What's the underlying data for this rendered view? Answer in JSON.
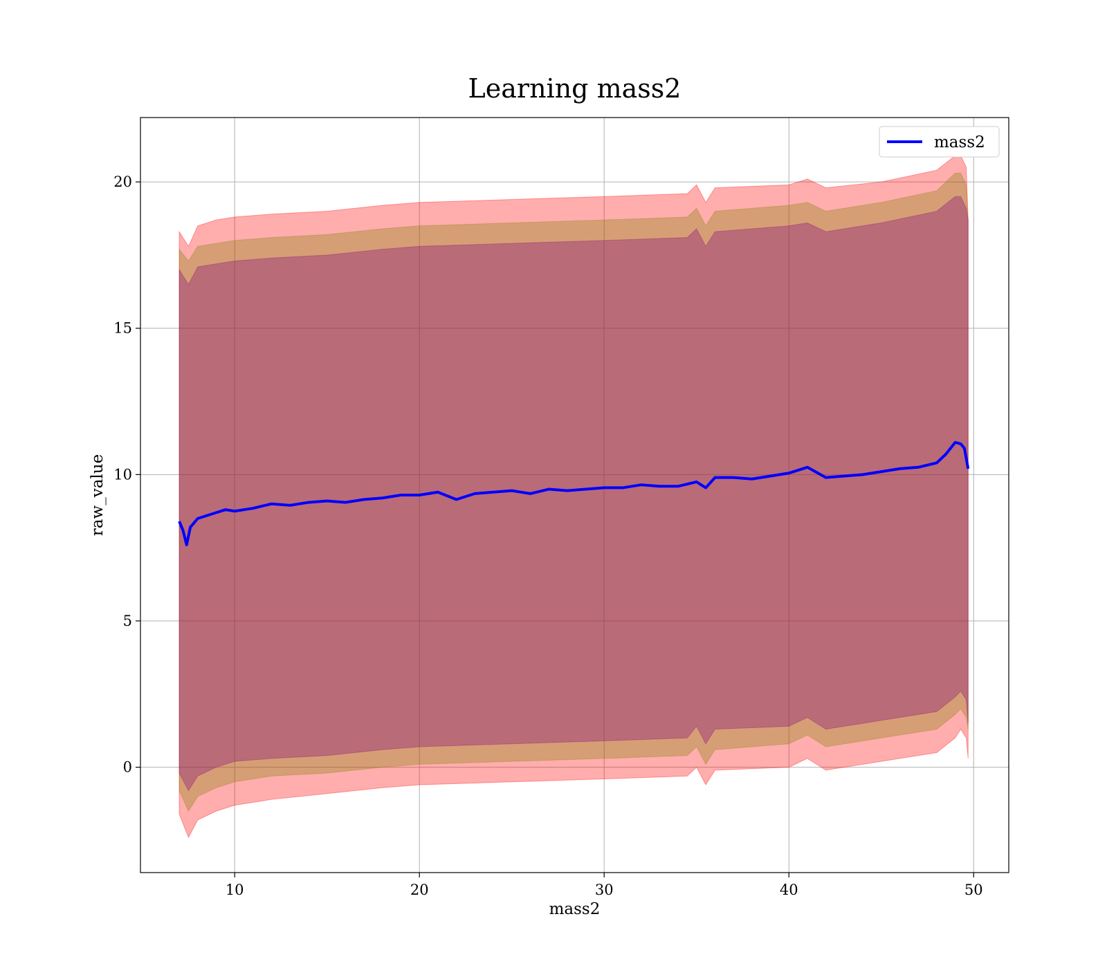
{
  "chart_data": {
    "type": "line",
    "title": "Learning mass2",
    "xlabel": "mass2",
    "ylabel": "raw_value",
    "xlim": [
      4.9,
      51.9
    ],
    "ylim": [
      -3.6,
      22.2
    ],
    "xticks": [
      10,
      20,
      30,
      40,
      50
    ],
    "yticks": [
      0,
      5,
      10,
      15,
      20
    ],
    "xtick_labels": [
      "10",
      "20",
      "30",
      "40",
      "50"
    ],
    "ytick_labels": [
      "0",
      "5",
      "10",
      "15",
      "20"
    ],
    "grid": true,
    "legend": {
      "position": "top-right",
      "entries": [
        "mass2"
      ]
    },
    "colors": {
      "line": "#0000ff",
      "band_outer": "#ff0000",
      "band_mid": "#808000",
      "band_inner": "#800080",
      "grid": "#b0b0b0"
    },
    "series": [
      {
        "name": "mass2",
        "x": [
          7.0,
          7.2,
          7.4,
          7.6,
          8.0,
          8.5,
          9.0,
          9.5,
          10.0,
          11.0,
          12.0,
          13.0,
          14.0,
          15.0,
          16.0,
          17.0,
          18.0,
          19.0,
          20.0,
          21.0,
          22.0,
          23.0,
          24.0,
          25.0,
          26.0,
          27.0,
          28.0,
          29.0,
          30.0,
          31.0,
          32.0,
          33.0,
          34.0,
          35.0,
          35.5,
          36.0,
          37.0,
          38.0,
          39.0,
          40.0,
          41.0,
          42.0,
          43.0,
          44.0,
          45.0,
          46.0,
          47.0,
          48.0,
          48.5,
          49.0,
          49.3,
          49.5,
          49.7
        ],
        "y": [
          8.4,
          8.1,
          7.6,
          8.2,
          8.5,
          8.6,
          8.7,
          8.8,
          8.75,
          8.85,
          9.0,
          8.95,
          9.05,
          9.1,
          9.05,
          9.15,
          9.2,
          9.3,
          9.3,
          9.4,
          9.15,
          9.35,
          9.4,
          9.45,
          9.35,
          9.5,
          9.45,
          9.5,
          9.55,
          9.55,
          9.65,
          9.6,
          9.6,
          9.75,
          9.55,
          9.9,
          9.9,
          9.85,
          9.95,
          10.05,
          10.25,
          9.9,
          9.95,
          10.0,
          10.1,
          10.2,
          10.25,
          10.4,
          10.7,
          11.1,
          11.05,
          10.9,
          10.2
        ]
      }
    ],
    "bands": {
      "x": [
        7.0,
        7.5,
        8.0,
        9.0,
        10.0,
        12.0,
        15.0,
        18.0,
        20.0,
        25.0,
        30.0,
        34.5,
        35.0,
        35.5,
        36.0,
        40.0,
        41.0,
        42.0,
        45.0,
        48.0,
        49.0,
        49.3,
        49.6,
        49.7
      ],
      "outer_upper": [
        18.3,
        17.8,
        18.5,
        18.7,
        18.8,
        18.9,
        19.0,
        19.2,
        19.3,
        19.4,
        19.5,
        19.6,
        19.9,
        19.3,
        19.8,
        19.9,
        20.1,
        19.8,
        20.0,
        20.4,
        20.9,
        20.9,
        20.5,
        18.7
      ],
      "mid_upper": [
        17.7,
        17.3,
        17.8,
        17.9,
        18.0,
        18.1,
        18.2,
        18.4,
        18.5,
        18.6,
        18.7,
        18.8,
        19.1,
        18.5,
        19.0,
        19.2,
        19.3,
        19.0,
        19.3,
        19.7,
        20.3,
        20.3,
        19.9,
        18.7
      ],
      "inner_upper": [
        17.0,
        16.5,
        17.1,
        17.2,
        17.3,
        17.4,
        17.5,
        17.7,
        17.8,
        17.9,
        18.0,
        18.1,
        18.4,
        17.8,
        18.3,
        18.5,
        18.6,
        18.3,
        18.6,
        19.0,
        19.5,
        19.5,
        19.1,
        18.7
      ],
      "inner_lower": [
        -0.2,
        -0.8,
        -0.3,
        0.0,
        0.2,
        0.3,
        0.4,
        0.6,
        0.7,
        0.8,
        0.9,
        1.0,
        1.4,
        0.8,
        1.3,
        1.4,
        1.7,
        1.3,
        1.6,
        1.9,
        2.4,
        2.6,
        2.3,
        1.5
      ],
      "mid_lower": [
        -0.8,
        -1.5,
        -1.0,
        -0.7,
        -0.5,
        -0.3,
        -0.2,
        0.0,
        0.1,
        0.2,
        0.3,
        0.4,
        0.7,
        0.1,
        0.6,
        0.8,
        1.1,
        0.7,
        1.0,
        1.3,
        1.8,
        2.0,
        1.7,
        1.3
      ],
      "outer_lower": [
        -1.6,
        -2.4,
        -1.8,
        -1.5,
        -1.3,
        -1.1,
        -0.9,
        -0.7,
        -0.6,
        -0.5,
        -0.4,
        -0.3,
        0.0,
        -0.6,
        -0.1,
        0.0,
        0.3,
        -0.1,
        0.2,
        0.5,
        1.0,
        1.3,
        1.0,
        0.3
      ]
    }
  }
}
